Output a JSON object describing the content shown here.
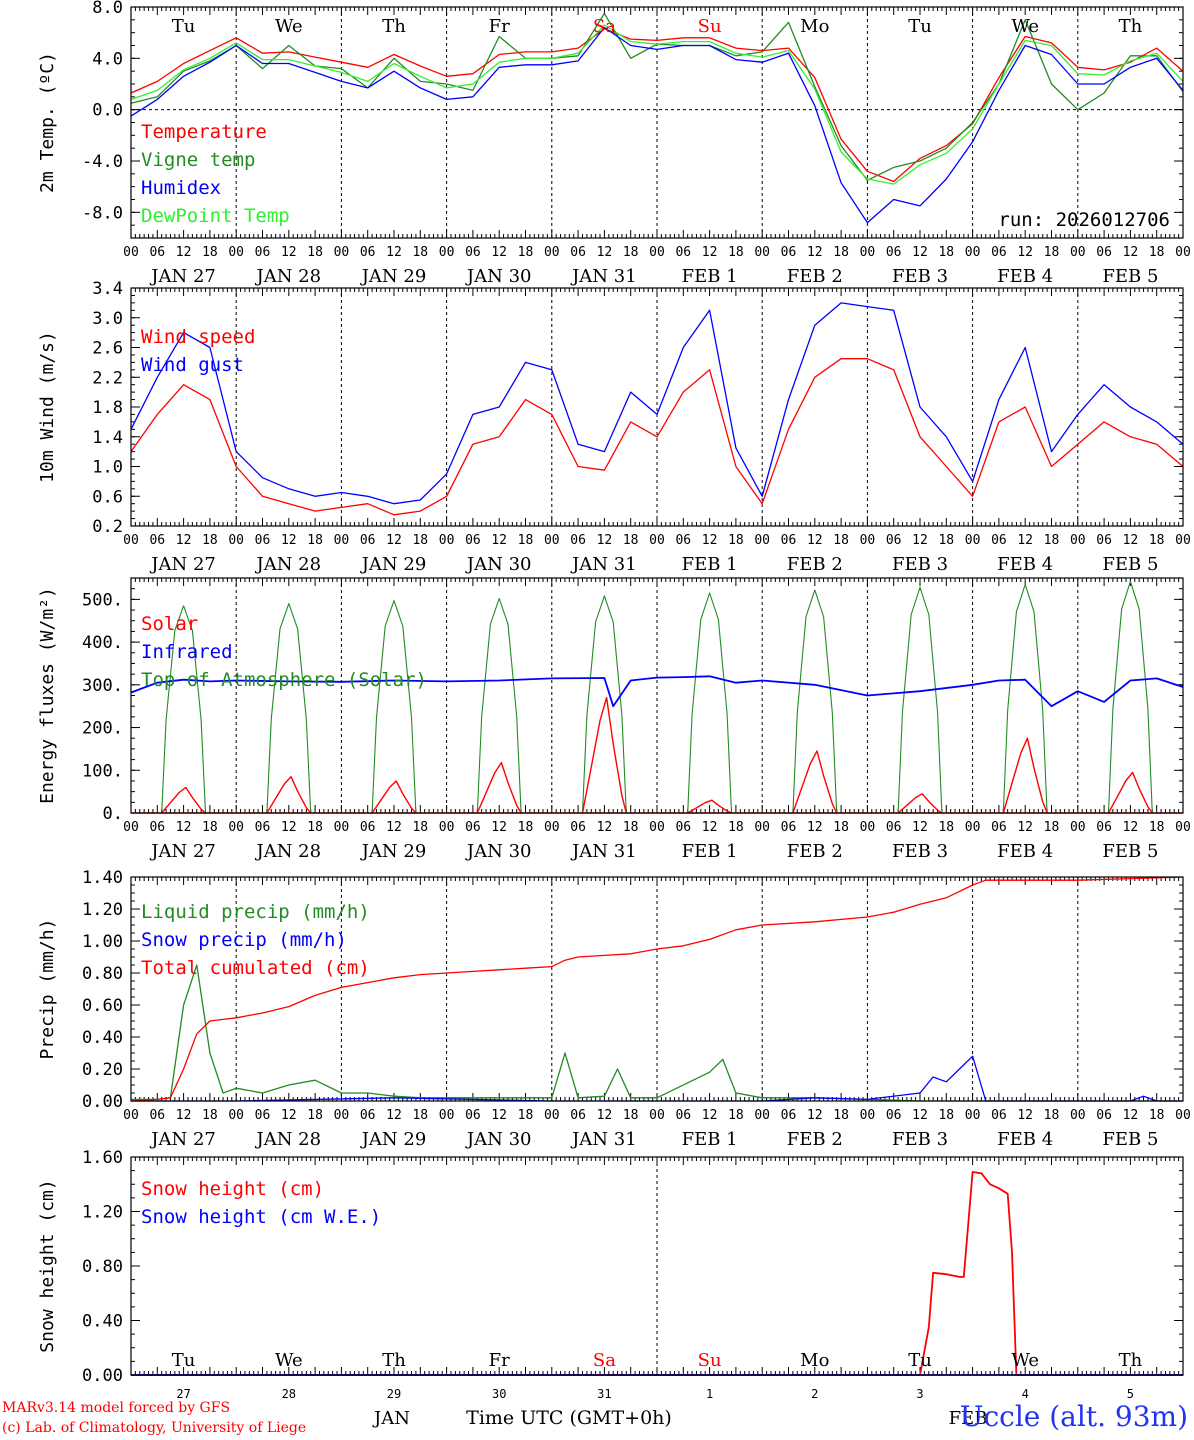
{
  "run_label": "run: 2026012706",
  "footer": {
    "credit_line1": "MARv3.14 model forced by GFS",
    "credit_line2": "(c) Lab. of Climatology, University of Liege",
    "month_label_1": "JAN",
    "month_label_2": "FEB",
    "time_label": "Time UTC (GMT+0h)",
    "station": "Uccle (alt. 93m)"
  },
  "weekdays": [
    {
      "label": "Tu",
      "color": "#000000"
    },
    {
      "label": "We",
      "color": "#000000"
    },
    {
      "label": "Th",
      "color": "#000000"
    },
    {
      "label": "Fr",
      "color": "#000000"
    },
    {
      "label": "Sa",
      "color": "#ff0000"
    },
    {
      "label": "Su",
      "color": "#ff0000"
    },
    {
      "label": "Mo",
      "color": "#000000"
    },
    {
      "label": "Tu",
      "color": "#000000"
    },
    {
      "label": "We",
      "color": "#000000"
    },
    {
      "label": "Th",
      "color": "#000000"
    }
  ],
  "day_labels": [
    "JAN 27",
    "JAN 28",
    "JAN 29",
    "JAN 30",
    "JAN 31",
    "FEB  1",
    "FEB  2",
    "FEB  3",
    "FEB  4",
    "FEB  5"
  ],
  "day_numbers": [
    "27",
    "28",
    "29",
    "30",
    "31",
    "1",
    "2",
    "3",
    "4",
    "5"
  ],
  "hour_ticks": [
    "00",
    "06",
    "12",
    "18"
  ],
  "colors": {
    "red": "#ff0000",
    "green": "#228b22",
    "blue": "#0000ff",
    "lightgreen": "#33ee33",
    "black": "#000000"
  },
  "chart_data": [
    {
      "type": "line",
      "ylabel": "2m Temp. (ºC)",
      "ylim": [
        -10,
        8
      ],
      "yticks": [
        8.0,
        4.0,
        0.0,
        -4.0,
        -8.0
      ],
      "ytick_labels": [
        "8.0",
        "4.0",
        "0.0",
        "-4.0",
        "-8.0"
      ],
      "x_unit": "hours since JAN 27 00 UTC",
      "xlim": [
        0,
        240
      ],
      "zero_line": true,
      "series": [
        {
          "name": "Temperature",
          "color": "#ff0000",
          "x": [
            0,
            6,
            12,
            18,
            24,
            30,
            36,
            42,
            48,
            54,
            60,
            66,
            72,
            78,
            84,
            90,
            96,
            102,
            108,
            114,
            120,
            126,
            132,
            138,
            144,
            150,
            156,
            162,
            168,
            174,
            180,
            186,
            192,
            198,
            204,
            210,
            216,
            222,
            228,
            234,
            240
          ],
          "values": [
            1.3,
            2.2,
            3.6,
            4.6,
            5.6,
            4.4,
            4.5,
            4.1,
            3.7,
            3.3,
            4.3,
            3.4,
            2.6,
            2.8,
            4.3,
            4.5,
            4.5,
            4.8,
            6.3,
            5.5,
            5.4,
            5.6,
            5.6,
            4.8,
            4.6,
            4.8,
            2.5,
            -2.3,
            -4.8,
            -5.6,
            -3.8,
            -2.8,
            -1.1,
            2.5,
            5.7,
            5.2,
            3.3,
            3.1,
            3.7,
            4.8,
            3.0
          ]
        },
        {
          "name": "Vigne temp",
          "color": "#228b22",
          "x": [
            0,
            6,
            12,
            18,
            24,
            30,
            36,
            42,
            48,
            54,
            60,
            66,
            72,
            78,
            84,
            90,
            96,
            102,
            108,
            114,
            120,
            126,
            132,
            138,
            144,
            150,
            156,
            162,
            168,
            174,
            180,
            186,
            192,
            198,
            204,
            210,
            216,
            222,
            228,
            234,
            240
          ],
          "values": [
            0.5,
            1.0,
            3.0,
            3.8,
            5.0,
            3.2,
            5.0,
            3.4,
            3.2,
            1.7,
            4.0,
            2.2,
            2.0,
            1.5,
            5.7,
            4.0,
            4.0,
            4.2,
            7.5,
            4.0,
            5.1,
            5.0,
            5.0,
            4.2,
            4.5,
            6.8,
            1.8,
            -2.8,
            -5.5,
            -4.5,
            -4.0,
            -3.0,
            -1.0,
            2.0,
            7.0,
            2.0,
            0.0,
            1.3,
            4.2,
            4.2,
            1.4
          ]
        },
        {
          "name": "Humidex",
          "color": "#0000ff",
          "x": [
            0,
            6,
            12,
            18,
            24,
            30,
            36,
            42,
            48,
            54,
            60,
            66,
            72,
            78,
            84,
            90,
            96,
            102,
            108,
            114,
            120,
            126,
            132,
            138,
            144,
            150,
            156,
            162,
            168,
            174,
            180,
            186,
            192,
            198,
            204,
            210,
            216,
            222,
            228,
            234,
            240
          ],
          "values": [
            -0.5,
            0.8,
            2.6,
            3.7,
            5.0,
            3.6,
            3.6,
            2.9,
            2.2,
            1.7,
            3.0,
            1.7,
            0.8,
            1.0,
            3.3,
            3.5,
            3.5,
            3.8,
            6.4,
            5.0,
            4.7,
            5.0,
            5.0,
            3.9,
            3.7,
            4.4,
            0.3,
            -5.7,
            -8.8,
            -7.0,
            -7.5,
            -5.4,
            -2.5,
            1.5,
            5.0,
            4.3,
            2.0,
            2.0,
            3.3,
            4.0,
            1.5
          ]
        },
        {
          "name": "DewPoint Temp",
          "color": "#33ee33",
          "x": [
            0,
            6,
            12,
            18,
            24,
            30,
            36,
            42,
            48,
            54,
            60,
            66,
            72,
            78,
            84,
            90,
            96,
            102,
            108,
            114,
            120,
            126,
            132,
            138,
            144,
            150,
            156,
            162,
            168,
            174,
            180,
            186,
            192,
            198,
            204,
            210,
            216,
            222,
            228,
            234,
            240
          ],
          "values": [
            0.8,
            1.5,
            3.1,
            4.0,
            5.2,
            3.9,
            3.9,
            3.4,
            2.9,
            2.2,
            3.6,
            2.6,
            1.7,
            2.0,
            3.7,
            4.0,
            4.0,
            4.4,
            6.6,
            5.3,
            5.1,
            5.3,
            5.3,
            4.4,
            4.1,
            4.6,
            1.6,
            -3.3,
            -5.4,
            -5.8,
            -4.3,
            -3.4,
            -1.5,
            2.0,
            5.4,
            5.0,
            2.8,
            2.7,
            3.8,
            4.4,
            2.2
          ]
        }
      ]
    },
    {
      "type": "line",
      "ylabel": "10m Wind (m/s)",
      "ylim": [
        0.2,
        3.4
      ],
      "yticks": [
        3.4,
        3.0,
        2.6,
        2.2,
        1.8,
        1.4,
        1.0,
        0.6,
        0.2
      ],
      "ytick_labels": [
        "3.4",
        "3.0",
        "2.6",
        "2.2",
        "1.8",
        "1.4",
        "1.0",
        "0.6",
        "0.2"
      ],
      "x_unit": "hours since JAN 27 00 UTC",
      "xlim": [
        0,
        240
      ],
      "series": [
        {
          "name": "Wind speed",
          "color": "#ff0000",
          "x": [
            0,
            6,
            12,
            18,
            24,
            30,
            36,
            42,
            48,
            54,
            60,
            66,
            72,
            78,
            84,
            90,
            96,
            102,
            108,
            114,
            120,
            126,
            132,
            138,
            144,
            150,
            156,
            162,
            168,
            174,
            180,
            186,
            192,
            198,
            204,
            210,
            216,
            222,
            228,
            234,
            240
          ],
          "values": [
            1.2,
            1.7,
            2.1,
            1.9,
            1.0,
            0.6,
            0.5,
            0.4,
            0.45,
            0.5,
            0.35,
            0.4,
            0.6,
            1.3,
            1.4,
            1.9,
            1.7,
            1.0,
            0.95,
            1.6,
            1.4,
            2.0,
            2.3,
            1.0,
            0.5,
            1.5,
            2.2,
            2.45,
            2.45,
            2.3,
            1.4,
            1.0,
            0.6,
            1.6,
            1.8,
            1.0,
            1.3,
            1.6,
            1.4,
            1.3,
            1.0
          ]
        },
        {
          "name": "Wind gust",
          "color": "#0000ff",
          "x": [
            0,
            6,
            12,
            18,
            24,
            30,
            36,
            42,
            48,
            54,
            60,
            66,
            72,
            78,
            84,
            90,
            96,
            102,
            108,
            114,
            120,
            126,
            132,
            138,
            144,
            150,
            156,
            162,
            168,
            174,
            180,
            186,
            192,
            198,
            204,
            210,
            216,
            222,
            228,
            234,
            240
          ],
          "values": [
            1.5,
            2.2,
            2.8,
            2.6,
            1.2,
            0.85,
            0.7,
            0.6,
            0.65,
            0.6,
            0.5,
            0.55,
            0.9,
            1.7,
            1.8,
            2.4,
            2.3,
            1.3,
            1.2,
            2.0,
            1.7,
            2.6,
            3.1,
            1.25,
            0.6,
            1.9,
            2.9,
            3.2,
            3.15,
            3.1,
            1.8,
            1.4,
            0.8,
            1.9,
            2.6,
            1.2,
            1.7,
            2.1,
            1.8,
            1.6,
            1.3
          ]
        }
      ]
    },
    {
      "type": "line",
      "ylabel": "Energy fluxes (W/m²)",
      "ylim": [
        0,
        550
      ],
      "yticks": [
        500,
        400,
        300,
        200,
        100,
        0
      ],
      "ytick_labels": [
        "500.",
        "400.",
        "300.",
        "200.",
        "100.",
        "0."
      ],
      "x_unit": "hours since JAN 27 00 UTC",
      "xlim": [
        0,
        240
      ],
      "daily_peaks": {
        "toa_solar": [
          485,
          490,
          497,
          502,
          508,
          515,
          522,
          528,
          535,
          542
        ],
        "solar": [
          60,
          85,
          75,
          118,
          270,
          30,
          145,
          45,
          175,
          95
        ]
      },
      "series": [
        {
          "name": "Solar",
          "color": "#ff0000"
        },
        {
          "name": "Infrared",
          "color": "#0000ff",
          "x": [
            0,
            6,
            12,
            18,
            24,
            36,
            48,
            60,
            72,
            84,
            96,
            108,
            110,
            114,
            120,
            126,
            132,
            138,
            144,
            156,
            168,
            180,
            192,
            198,
            204,
            210,
            216,
            222,
            228,
            234,
            240
          ],
          "values": [
            282,
            305,
            312,
            308,
            310,
            308,
            307,
            310,
            308,
            310,
            315,
            316,
            250,
            310,
            317,
            318,
            320,
            305,
            310,
            300,
            275,
            285,
            300,
            310,
            312,
            250,
            285,
            260,
            310,
            315,
            295
          ]
        },
        {
          "name": "Top of Atmosphere (Solar)",
          "color": "#228b22"
        }
      ]
    },
    {
      "type": "line",
      "ylabel": "Precip (mm/h)",
      "ylim": [
        0,
        1.4
      ],
      "yticks": [
        1.4,
        1.2,
        1.0,
        0.8,
        0.6,
        0.4,
        0.2,
        0.0
      ],
      "ytick_labels": [
        "1.40",
        "1.20",
        "1.00",
        "0.80",
        "0.60",
        "0.40",
        "0.20",
        "0.00"
      ],
      "x_unit": "hours since JAN 27 00 UTC",
      "xlim": [
        0,
        240
      ],
      "series": [
        {
          "name": "Liquid precip (mm/h)",
          "color": "#228b22",
          "x": [
            0,
            6,
            9,
            12,
            15,
            18,
            21,
            24,
            30,
            36,
            42,
            48,
            54,
            60,
            66,
            72,
            84,
            96,
            99,
            102,
            108,
            111,
            114,
            120,
            132,
            135,
            138,
            144,
            156,
            168,
            180,
            186,
            192,
            204,
            216,
            228,
            234,
            240
          ],
          "values": [
            0.01,
            0.01,
            0.02,
            0.6,
            0.85,
            0.3,
            0.05,
            0.08,
            0.05,
            0.1,
            0.13,
            0.05,
            0.05,
            0.03,
            0.02,
            0.02,
            0.02,
            0.02,
            0.3,
            0.02,
            0.03,
            0.2,
            0.02,
            0.02,
            0.18,
            0.26,
            0.05,
            0.02,
            0.02,
            0.01,
            0.0,
            0.0,
            0.0,
            0.0,
            0.0,
            0.0,
            0.0,
            0.0
          ]
        },
        {
          "name": "Snow precip (mm/h)",
          "color": "#0000ff",
          "x": [
            0,
            24,
            60,
            96,
            108,
            144,
            156,
            168,
            180,
            183,
            186,
            189,
            192,
            195,
            196,
            216,
            228,
            231,
            234,
            240
          ],
          "values": [
            0.0,
            0.0,
            0.02,
            0.0,
            0.0,
            0.0,
            0.02,
            0.01,
            0.05,
            0.15,
            0.12,
            0.2,
            0.28,
            0.0,
            0.0,
            0.0,
            0.0,
            0.03,
            0.0,
            0.0
          ]
        },
        {
          "name": "Total cumulated (cm)",
          "color": "#ff0000",
          "x": [
            0,
            6,
            9,
            12,
            15,
            18,
            21,
            24,
            30,
            36,
            42,
            48,
            54,
            60,
            66,
            72,
            78,
            84,
            90,
            96,
            99,
            102,
            108,
            114,
            120,
            126,
            132,
            138,
            144,
            156,
            168,
            174,
            180,
            186,
            192,
            195,
            198,
            216,
            228,
            240
          ],
          "values": [
            0.0,
            0.01,
            0.02,
            0.2,
            0.42,
            0.5,
            0.51,
            0.52,
            0.55,
            0.59,
            0.66,
            0.71,
            0.74,
            0.77,
            0.79,
            0.8,
            0.81,
            0.82,
            0.83,
            0.84,
            0.88,
            0.9,
            0.91,
            0.92,
            0.95,
            0.97,
            1.01,
            1.07,
            1.1,
            1.12,
            1.15,
            1.18,
            1.23,
            1.27,
            1.35,
            1.38,
            1.38,
            1.38,
            1.39,
            1.4
          ]
        }
      ]
    },
    {
      "type": "line",
      "ylabel": "Snow height (cm)",
      "ylim": [
        0,
        1.6
      ],
      "yticks": [
        1.6,
        1.2,
        0.8,
        0.4,
        0.0
      ],
      "ytick_labels": [
        "1.60",
        "1.20",
        "0.80",
        "0.40",
        "0.00"
      ],
      "x_unit": "hours since JAN 27 00 UTC",
      "xlim": [
        0,
        240
      ],
      "series": [
        {
          "name": "Snow height (cm)",
          "color": "#ff0000",
          "x": [
            0,
            180,
            182,
            183,
            186,
            189,
            190,
            192,
            194,
            196,
            198,
            200,
            201,
            202,
            240
          ],
          "values": [
            0,
            0,
            0.35,
            0.75,
            0.74,
            0.72,
            0.72,
            1.49,
            1.48,
            1.4,
            1.37,
            1.33,
            0.9,
            0.0,
            0.0
          ]
        },
        {
          "name": "Snow height (cm W.E.)",
          "color": "#0000ff",
          "x": [
            0,
            240
          ],
          "values": [
            0,
            0
          ]
        }
      ]
    }
  ]
}
